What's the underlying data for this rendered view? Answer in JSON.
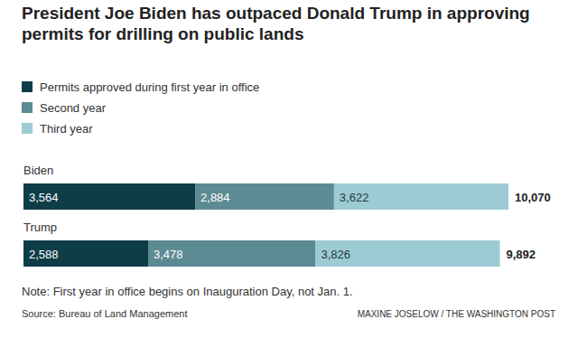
{
  "chart_data": {
    "type": "bar",
    "orientation": "horizontal",
    "stacked": true,
    "data_labels": true,
    "tick_labels": false,
    "title": "President Joe Biden has outpaced Donald Trump in approving permits for drilling on public lands",
    "categories": [
      "Biden",
      "Trump"
    ],
    "series": [
      {
        "name": "Permits approved during first year in office",
        "color": "#0f3d47",
        "values": [
          3564,
          2588
        ],
        "value_labels": [
          "3,564",
          "2,588"
        ]
      },
      {
        "name": "Second year",
        "color": "#5d8b93",
        "values": [
          2884,
          3478
        ],
        "value_labels": [
          "2,884",
          "3,478"
        ]
      },
      {
        "name": "Third year",
        "color": "#9dcbd3",
        "values": [
          3622,
          3826
        ],
        "value_labels": [
          "3,622",
          "3,826"
        ]
      }
    ],
    "totals": [
      10070,
      9892
    ],
    "total_labels": [
      "10,070",
      "9,892"
    ],
    "xlim": [
      0,
      10070
    ],
    "note": "Note: First year in office begins on Inauguration Day, not Jan. 1.",
    "source": "Source: Bureau of Land Management",
    "credit": "MAXINE JOSELOW / THE WASHINGTON POST"
  }
}
